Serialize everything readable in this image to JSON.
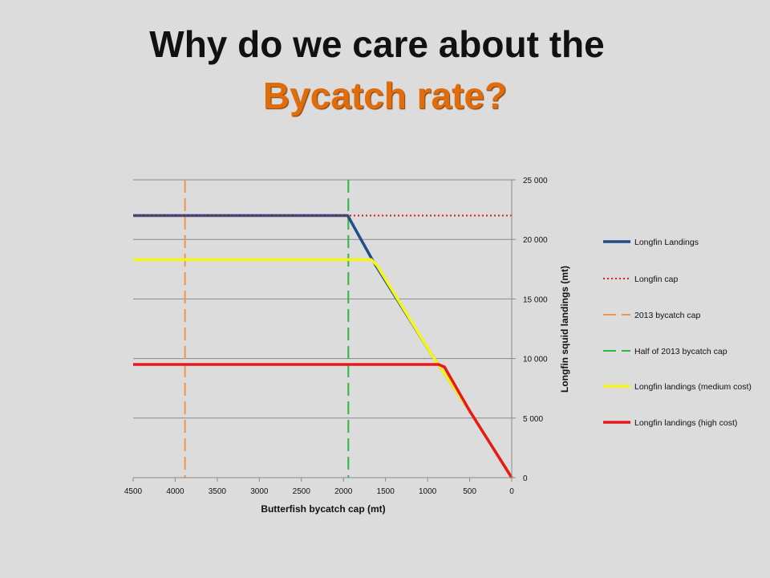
{
  "slide": {
    "title_line1": "Why do we care about the",
    "title_line2": "Bycatch rate?"
  },
  "colors": {
    "background": "#dcdcdc",
    "title_accent": "#e26b0a"
  },
  "chart_data": {
    "type": "line",
    "xlabel": "Butterfish bycatch cap (mt)",
    "ylabel": "Longfin squid landings (mt)",
    "xlim": [
      4500,
      0
    ],
    "ylim": [
      0,
      25000
    ],
    "x_ticks": [
      "4500",
      "4000",
      "3500",
      "3000",
      "2500",
      "2000",
      "1500",
      "1000",
      "500",
      "0"
    ],
    "y_ticks": [
      "0",
      "5 000",
      "10 000",
      "15 000",
      "20 000",
      "25 000"
    ],
    "y_axis_side": "right",
    "x_axis_reversed": true,
    "horizontal_gridlines": true,
    "legend_position": "right",
    "series": [
      {
        "name": "Longfin Landings",
        "color": "#1f4e8c",
        "style": "solid",
        "points": [
          [
            4500,
            22000
          ],
          [
            1950,
            22000
          ],
          [
            1650,
            18200
          ],
          [
            950,
            10300
          ],
          [
            500,
            5600
          ],
          [
            0,
            0
          ]
        ]
      },
      {
        "name": "Longfin cap",
        "color": "#e8191c",
        "style": "dotted",
        "points": [
          [
            4500,
            22000
          ],
          [
            0,
            22000
          ]
        ]
      },
      {
        "name": "2013 bycatch cap",
        "color": "#f0944a",
        "style": "dashed",
        "vertical_x": 3884
      },
      {
        "name": "Half of 2013 bycatch cap",
        "color": "#2db83d",
        "style": "dashed",
        "vertical_x": 1942
      },
      {
        "name": "Longfin landings (medium cost)",
        "color": "#f5f516",
        "style": "solid",
        "points": [
          [
            4500,
            18300
          ],
          [
            1670,
            18300
          ],
          [
            1600,
            17800
          ],
          [
            950,
            10300
          ],
          [
            500,
            5600
          ],
          [
            0,
            0
          ]
        ]
      },
      {
        "name": "Longfin landings (high cost)",
        "color": "#e8191c",
        "style": "solid",
        "points": [
          [
            4500,
            9500
          ],
          [
            870,
            9500
          ],
          [
            800,
            9300
          ],
          [
            720,
            8300
          ],
          [
            500,
            5600
          ],
          [
            0,
            0
          ]
        ]
      }
    ]
  }
}
